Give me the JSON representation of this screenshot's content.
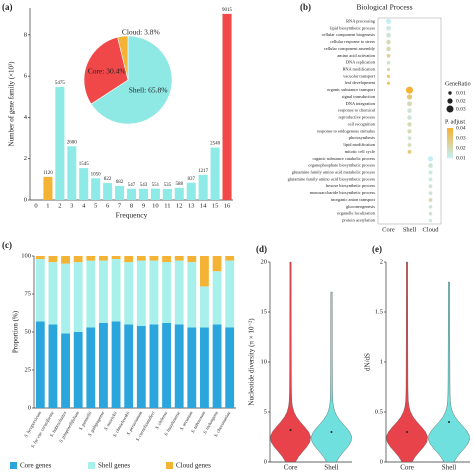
{
  "chart_data": [
    {
      "type": "bar",
      "panel": "(a)",
      "x_label": "Frequency",
      "y_label": "Number of gene family (×10³)",
      "categories": [
        "0",
        "1",
        "2",
        "3",
        "4",
        "5",
        "6",
        "7",
        "8",
        "9",
        "10",
        "11",
        "12",
        "13",
        "14",
        "15",
        "16"
      ],
      "values": [
        null,
        1.12,
        5.475,
        2.6,
        1.545,
        1.05,
        0.822,
        0.682,
        0.547,
        0.543,
        0.551,
        0.535,
        0.588,
        0.837,
        1.217,
        2.54,
        9.015
      ],
      "value_labels": [
        null,
        "1120",
        "5475",
        "2600",
        "1545",
        "1050",
        "822",
        "682",
        "547",
        "543",
        "551",
        "535",
        "588",
        "837",
        "1217",
        "2540",
        "9015"
      ],
      "colors": [
        "#8eeae6",
        "#f5b335",
        "#8eeae6",
        "#8eeae6",
        "#8eeae6",
        "#8eeae6",
        "#8eeae6",
        "#8eeae6",
        "#8eeae6",
        "#8eeae6",
        "#8eeae6",
        "#8eeae6",
        "#8eeae6",
        "#8eeae6",
        "#8eeae6",
        "#8eeae6",
        "#f04848"
      ],
      "ylim": [
        0,
        9.3
      ],
      "yticks": [
        0,
        2,
        4,
        6,
        8
      ]
    },
    {
      "type": "pie",
      "categories": [
        "Shell",
        "Core",
        "Cloud"
      ],
      "values": [
        65.8,
        30.4,
        3.8
      ],
      "value_labels": [
        "Shell: 65.8%",
        "Core: 30.4%",
        "Cloud: 3.8%"
      ],
      "colors": [
        "#8ee8e4",
        "#f04848",
        "#f5b335"
      ]
    },
    {
      "type": "dot",
      "panel": "(b)",
      "title": "Biological Process",
      "x_categories": [
        "Core",
        "Shell",
        "Cloud"
      ],
      "categories": [
        "RNA processing",
        "lipid biosynthetic process",
        "cellular component biogenesis",
        "cellular response to stress",
        "cellular component assembly",
        "amino acid activation",
        "DNA replication",
        "RNA modification",
        "vacuolar transport",
        "leaf development",
        "organic substance transport",
        "signal transduction",
        "DNA integration",
        "response to chemical",
        "reproductive process",
        "cell recognition",
        "response to endogenous stimulus",
        "photosynthesis",
        "lipid modification",
        "mitotic cell cycle",
        "organic substance catabolic process",
        "organophosphate biosynthetic process",
        "glutamine family amino acid metabolic process",
        "glutamine family amino acid biosynthetic process",
        "hexose biosynthetic process",
        "monosaccharide biosynthetic process",
        "inorganic anion transport",
        "gluconeogenesis",
        "organelle localization",
        "protein acetylation"
      ],
      "column": [
        "Core",
        "Core",
        "Core",
        "Core",
        "Core",
        "Core",
        "Core",
        "Core",
        "Core",
        "Core",
        "Shell",
        "Shell",
        "Shell",
        "Shell",
        "Shell",
        "Shell",
        "Shell",
        "Shell",
        "Shell",
        "Shell",
        "Cloud",
        "Cloud",
        "Cloud",
        "Cloud",
        "Cloud",
        "Cloud",
        "Cloud",
        "Cloud",
        "Cloud",
        "Cloud"
      ],
      "gene_ratio": [
        0.02,
        0.018,
        0.017,
        0.016,
        0.016,
        0.012,
        0.012,
        0.01,
        0.009,
        0.007,
        0.03,
        0.02,
        0.018,
        0.016,
        0.016,
        0.015,
        0.014,
        0.012,
        0.012,
        0.012,
        0.02,
        0.017,
        0.014,
        0.013,
        0.012,
        0.012,
        0.012,
        0.011,
        0.011,
        0.01
      ],
      "p_adjust": [
        0.01,
        0.012,
        0.015,
        0.02,
        0.02,
        0.025,
        0.015,
        0.02,
        0.03,
        0.035,
        0.04,
        0.03,
        0.02,
        0.015,
        0.015,
        0.02,
        0.02,
        0.015,
        0.02,
        0.03,
        0.01,
        0.015,
        0.012,
        0.012,
        0.015,
        0.015,
        0.02,
        0.015,
        0.015,
        0.012
      ],
      "size_title": "GeneRatio",
      "size_ticks": [
        0.01,
        0.02,
        0.03
      ],
      "color_title": "P. adjust",
      "color_ticks": [
        0.04,
        0.03,
        0.02,
        0.01
      ],
      "color_lim": [
        0.01,
        0.04
      ],
      "color_low": "#c6eef2",
      "color_high": "#f5b335"
    },
    {
      "type": "stacked_bar",
      "panel": "(c)",
      "y_label": "Proportion (%)",
      "categories": [
        "S. lycopersicum",
        "S. lyc var. cerasiforme",
        "S. habrochaites",
        "S. pimpinellifolium",
        "S. pennellii",
        "S. galapagense",
        "S. neorickii",
        "S. chmielewskii",
        "S. peruvianum",
        "S. corneliomulleri",
        "S. chilense",
        "S. huaylasense",
        "S. arcanum",
        "S. tuberosum",
        "S. melongena",
        "S. cheesmaniae"
      ],
      "series": [
        {
          "name": "Core genes",
          "color": "#2aa6dc",
          "values": [
            57,
            55,
            49,
            50,
            53,
            56,
            57,
            55,
            54,
            55,
            56,
            55,
            53,
            53,
            55,
            53
          ]
        },
        {
          "name": "Shell genes",
          "color": "#a8f0ec",
          "values": [
            41,
            41,
            46,
            46,
            44,
            41,
            41,
            41,
            43,
            42,
            40,
            42,
            43,
            27,
            35,
            44
          ]
        },
        {
          "name": "Cloud genes",
          "color": "#f5b335",
          "values": [
            2,
            4,
            5,
            4,
            3,
            3,
            2,
            4,
            3,
            3,
            4,
            3,
            4,
            20,
            10,
            3
          ]
        }
      ],
      "ylim": [
        0,
        100
      ],
      "yticks": [
        0,
        25,
        50,
        75,
        100
      ]
    },
    {
      "type": "violin",
      "panel": "(d)",
      "y_label": "Nucleotide diversity (π × 10⁻²)",
      "categories": [
        "Core",
        "Shell"
      ],
      "colors": [
        "#e8434a",
        "#6fe0dd"
      ],
      "means": [
        3.2,
        3.0
      ],
      "max": [
        20,
        17
      ],
      "ylim": [
        0,
        20
      ],
      "yticks": [
        0,
        5,
        10,
        15,
        20
      ]
    },
    {
      "type": "violin",
      "panel": "(e)",
      "y_label": "dN/dS",
      "categories": [
        "Core",
        "Shell"
      ],
      "colors": [
        "#e8434a",
        "#6fe0dd"
      ],
      "means": [
        0.3,
        0.4
      ],
      "max": [
        2,
        1.8
      ],
      "ylim": [
        0,
        2
      ],
      "yticks": [
        0,
        0.5,
        1,
        1.5,
        2
      ]
    }
  ]
}
